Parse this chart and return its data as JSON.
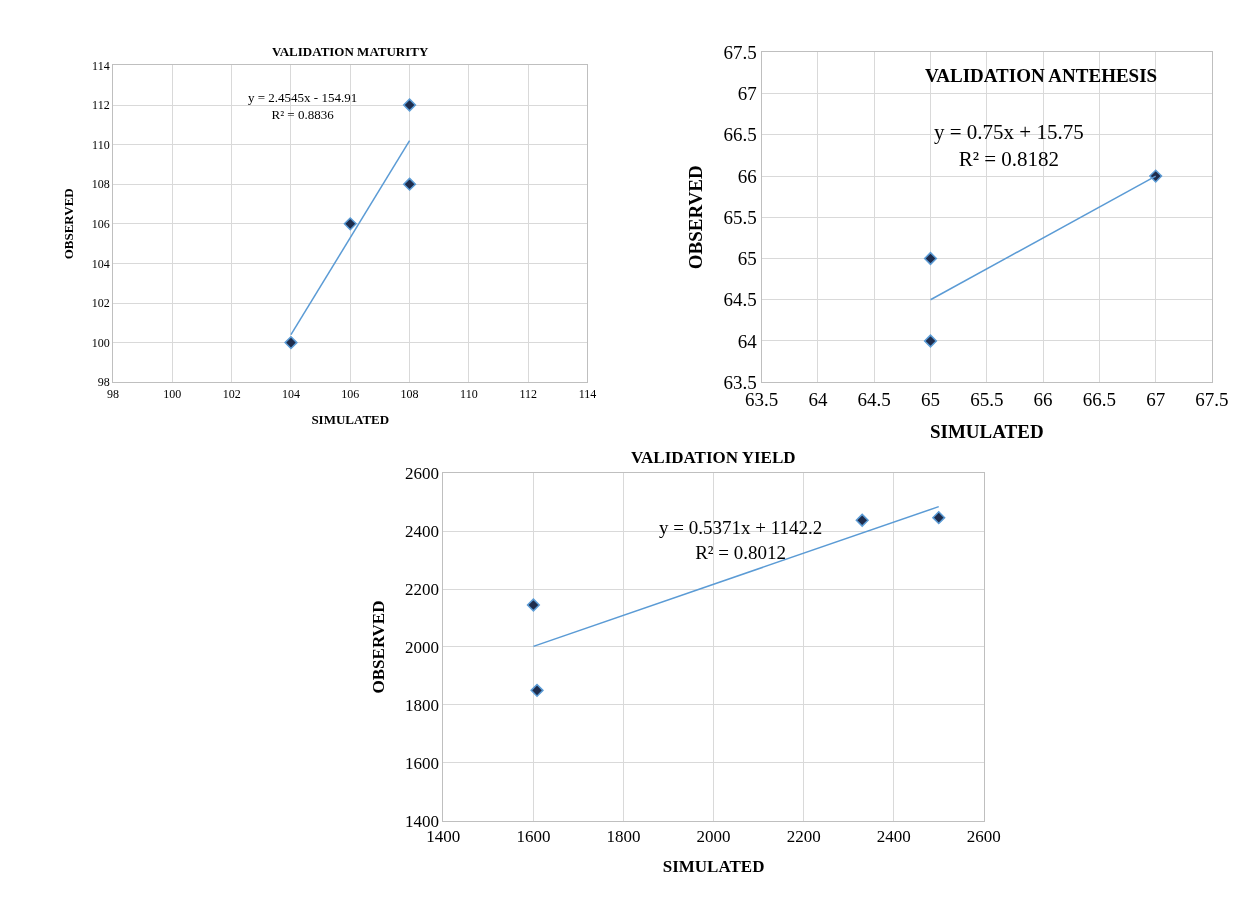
{
  "chart_data": [
    {
      "type": "scatter",
      "title": "VALIDATION MATURITY",
      "xlabel": "SIMULATED",
      "ylabel": "OBSERVED",
      "marker": "diamond",
      "grid": true,
      "annotations": [
        "y = 2.4545x - 154.91",
        "R² = 0.8836"
      ],
      "xlim": [
        98,
        114
      ],
      "xticks": [
        98,
        100,
        102,
        104,
        106,
        108,
        110,
        112,
        114
      ],
      "ylim": [
        98,
        114
      ],
      "yticks": [
        98,
        100,
        102,
        104,
        106,
        108,
        110,
        112,
        114
      ],
      "series": [
        {
          "color": "#1f2d4d",
          "x": [
            104,
            106,
            108,
            108
          ],
          "values": [
            100,
            106,
            112,
            108
          ]
        },
        {
          "type": "line",
          "marker": "none",
          "color": "#5b9bd5",
          "x": [
            104,
            108
          ],
          "values": [
            100.4,
            110.2
          ]
        }
      ]
    },
    {
      "type": "scatter",
      "title": "VALIDATION ANTEHESIS",
      "xlabel": "SIMULATED",
      "ylabel": "OBSERVED",
      "marker": "diamond",
      "grid": true,
      "annotations": [
        "y = 0.75x + 15.75",
        "R² = 0.8182"
      ],
      "xlim": [
        63.5,
        67.5
      ],
      "xticks": [
        63.5,
        64,
        64.5,
        65,
        65.5,
        66,
        66.5,
        67,
        67.5
      ],
      "ylim": [
        63.5,
        67.5
      ],
      "yticks": [
        63.5,
        64,
        64.5,
        65,
        65.5,
        66,
        66.5,
        67,
        67.5
      ],
      "series": [
        {
          "color": "#1f2d4d",
          "x": [
            65,
            65,
            67
          ],
          "values": [
            65,
            64,
            66
          ]
        },
        {
          "type": "line",
          "marker": "none",
          "color": "#5b9bd5",
          "x": [
            65,
            67
          ],
          "values": [
            64.5,
            66
          ]
        }
      ]
    },
    {
      "type": "scatter",
      "title": "VALIDATION YIELD",
      "xlabel": "SIMULATED",
      "ylabel": "OBSERVED",
      "marker": "diamond",
      "grid": true,
      "annotations": [
        "y = 0.5371x + 1142.2",
        "R² = 0.8012"
      ],
      "xlim": [
        1400,
        2600
      ],
      "xticks": [
        1400,
        1600,
        1800,
        2000,
        2200,
        2400,
        2600
      ],
      "ylim": [
        1400,
        2600
      ],
      "yticks": [
        1400,
        1600,
        1800,
        2000,
        2200,
        2400,
        2600
      ],
      "series": [
        {
          "color": "#1f2d4d",
          "x": [
            1600,
            1608,
            2330,
            2500
          ],
          "values": [
            2145,
            1850,
            2438,
            2447
          ]
        },
        {
          "type": "line",
          "marker": "none",
          "color": "#5b9bd5",
          "x": [
            1600,
            2500
          ],
          "values": [
            2002,
            2485
          ]
        }
      ]
    }
  ]
}
